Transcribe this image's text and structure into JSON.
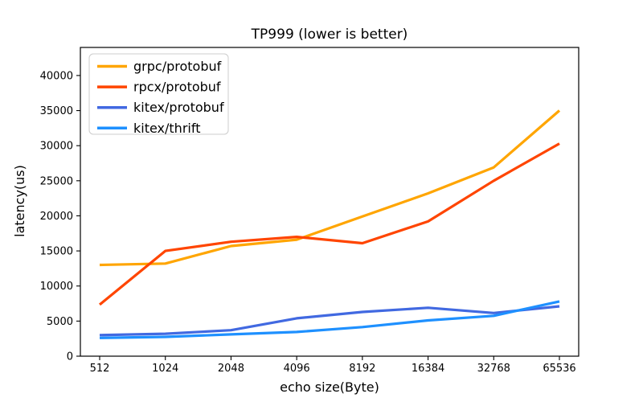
{
  "chart_data": {
    "type": "line",
    "title": "TP999 (lower is better)",
    "xlabel": "echo size(Byte)",
    "ylabel": "latency(us)",
    "categories": [
      "512",
      "1024",
      "2048",
      "4096",
      "8192",
      "16384",
      "32768",
      "65536"
    ],
    "yticks": [
      0,
      5000,
      10000,
      15000,
      20000,
      25000,
      30000,
      35000,
      40000
    ],
    "ylim": [
      0,
      44000
    ],
    "grid": false,
    "legend_position": "upper-left",
    "series": [
      {
        "name": "grpc/protobuf",
        "color": "#FFA500",
        "values": [
          13000,
          13200,
          15700,
          16600,
          19900,
          23200,
          26900,
          35000
        ]
      },
      {
        "name": "rpcx/protobuf",
        "color": "#FF4500",
        "values": [
          7350,
          15000,
          16300,
          17000,
          16100,
          19200,
          25000,
          30300
        ]
      },
      {
        "name": "kitex/protobuf",
        "color": "#4169E1",
        "values": [
          3000,
          3200,
          3700,
          5400,
          6300,
          6900,
          6150,
          7100
        ]
      },
      {
        "name": "kitex/thrift",
        "color": "#1E90FF",
        "values": [
          2600,
          2750,
          3100,
          3450,
          4150,
          5100,
          5750,
          7800
        ]
      }
    ]
  }
}
